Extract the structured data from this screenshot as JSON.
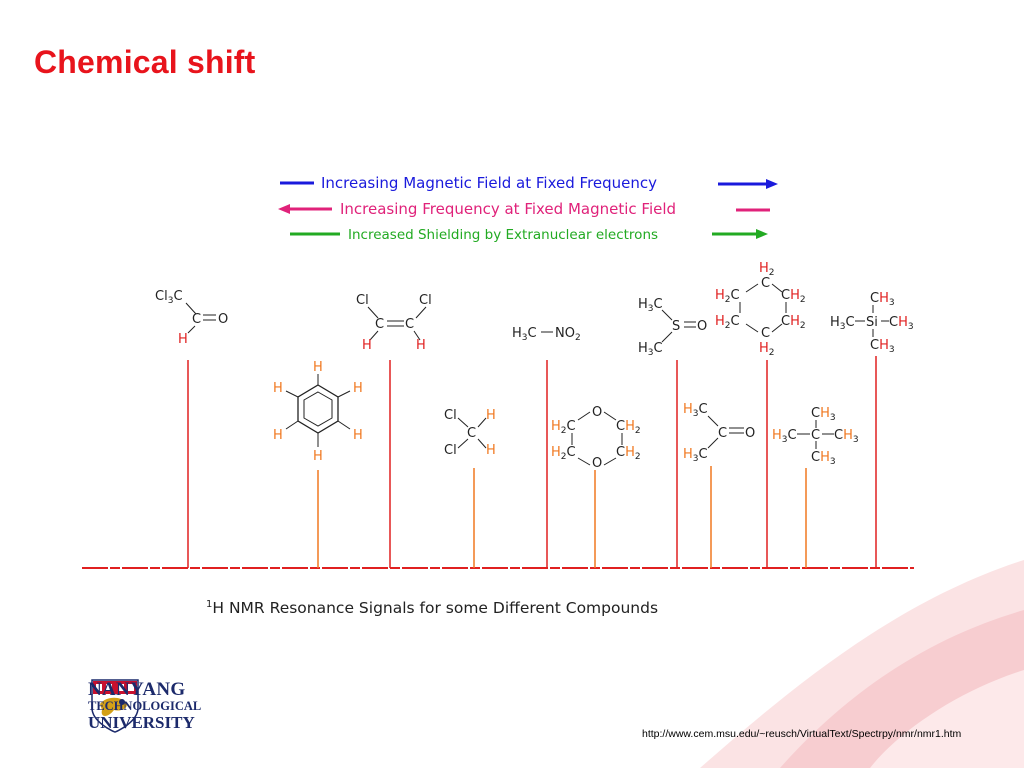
{
  "title": "Chemical shift",
  "arrows": [
    {
      "label": "Increasing Magnetic Field at Fixed Frequency",
      "color": "#1a1adc"
    },
    {
      "label": "Increasing Frequency at Fixed Magnetic Field",
      "color": "#e0227a"
    },
    {
      "label": "Increased Shielding by Extranuclear electrons",
      "color": "#22aa22"
    }
  ],
  "spectrum_caption": {
    "sup": "1",
    "text": "H NMR Resonance Signals for some Different Compounds"
  },
  "compounds": [
    {
      "id": "trichloroacetaldehyde",
      "formula": "Cl3CCHO",
      "signal_color": "#e02020"
    },
    {
      "id": "benzene",
      "formula": "C6H6",
      "signal_color": "#f07820"
    },
    {
      "id": "dichloroethylene",
      "formula": "ClHC=CHCl",
      "signal_color": "#e02020"
    },
    {
      "id": "dichloromethane",
      "formula": "CH2Cl2",
      "signal_color": "#f07820"
    },
    {
      "id": "nitromethane",
      "formula": "H3C-NO2",
      "signal_color": "#e02020"
    },
    {
      "id": "dioxane",
      "formula": "C4H8O2",
      "signal_color": "#f07820"
    },
    {
      "id": "dmso",
      "formula": "(CH3)2SO",
      "signal_color": "#e02020"
    },
    {
      "id": "acetone",
      "formula": "(CH3)2CO",
      "signal_color": "#f07820"
    },
    {
      "id": "cyclohexane",
      "formula": "C6H12",
      "signal_color": "#e02020"
    },
    {
      "id": "isobutane-tbutyl",
      "formula": "C(CH3)4",
      "signal_color": "#f07820"
    },
    {
      "id": "tms",
      "formula": "Si(CH3)4",
      "signal_color": "#e02020"
    }
  ],
  "logo": {
    "line1": "NANYANG",
    "line2": "TECHNOLOGICAL",
    "line3": "UNIVERSITY"
  },
  "source_url": "http://www.cem.msu.edu/~reusch/VirtualText/Spectrpy/nmr/nmr1.htm"
}
